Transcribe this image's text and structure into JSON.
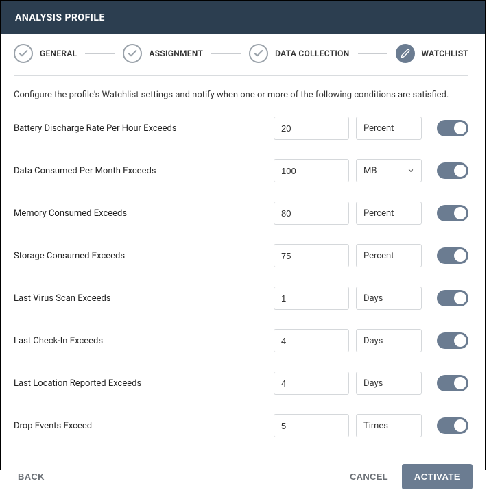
{
  "colors": {
    "titlebar_bg": "#2c3e50",
    "accent": "#6b7c91",
    "step_done_border": "#9aa2aa",
    "border": "#d5d8db",
    "text": "#333333"
  },
  "title": "ANALYSIS PROFILE",
  "steps": [
    {
      "label": "GENERAL",
      "state": "done",
      "icon": "check"
    },
    {
      "label": "ASSIGNMENT",
      "state": "done",
      "icon": "check"
    },
    {
      "label": "DATA COLLECTION",
      "state": "done",
      "icon": "check"
    },
    {
      "label": "WATCHLIST",
      "state": "active",
      "icon": "pencil"
    }
  ],
  "intro": "Configure the profile's Watchlist settings and notify when one or more of the following conditions are satisfied.",
  "settings": [
    {
      "key": "battery",
      "label": "Battery Discharge Rate Per Hour Exceeds",
      "value": "20",
      "unit": "Percent",
      "unit_is_select": false,
      "enabled": true
    },
    {
      "key": "data",
      "label": "Data Consumed Per Month Exceeds",
      "value": "100",
      "unit": "MB",
      "unit_is_select": true,
      "enabled": true
    },
    {
      "key": "memory",
      "label": "Memory Consumed Exceeds",
      "value": "80",
      "unit": "Percent",
      "unit_is_select": false,
      "enabled": true
    },
    {
      "key": "storage",
      "label": "Storage Consumed Exceeds",
      "value": "75",
      "unit": "Percent",
      "unit_is_select": false,
      "enabled": true
    },
    {
      "key": "virus",
      "label": "Last Virus Scan Exceeds",
      "value": "1",
      "unit": "Days",
      "unit_is_select": false,
      "enabled": true
    },
    {
      "key": "checkin",
      "label": "Last Check-In Exceeds",
      "value": "4",
      "unit": "Days",
      "unit_is_select": false,
      "enabled": true
    },
    {
      "key": "location",
      "label": "Last Location Reported Exceeds",
      "value": "4",
      "unit": "Days",
      "unit_is_select": false,
      "enabled": true
    },
    {
      "key": "drops",
      "label": "Drop Events Exceed",
      "value": "5",
      "unit": "Times",
      "unit_is_select": false,
      "enabled": true
    }
  ],
  "footer": {
    "back": "BACK",
    "cancel": "CANCEL",
    "activate": "ACTIVATE"
  }
}
